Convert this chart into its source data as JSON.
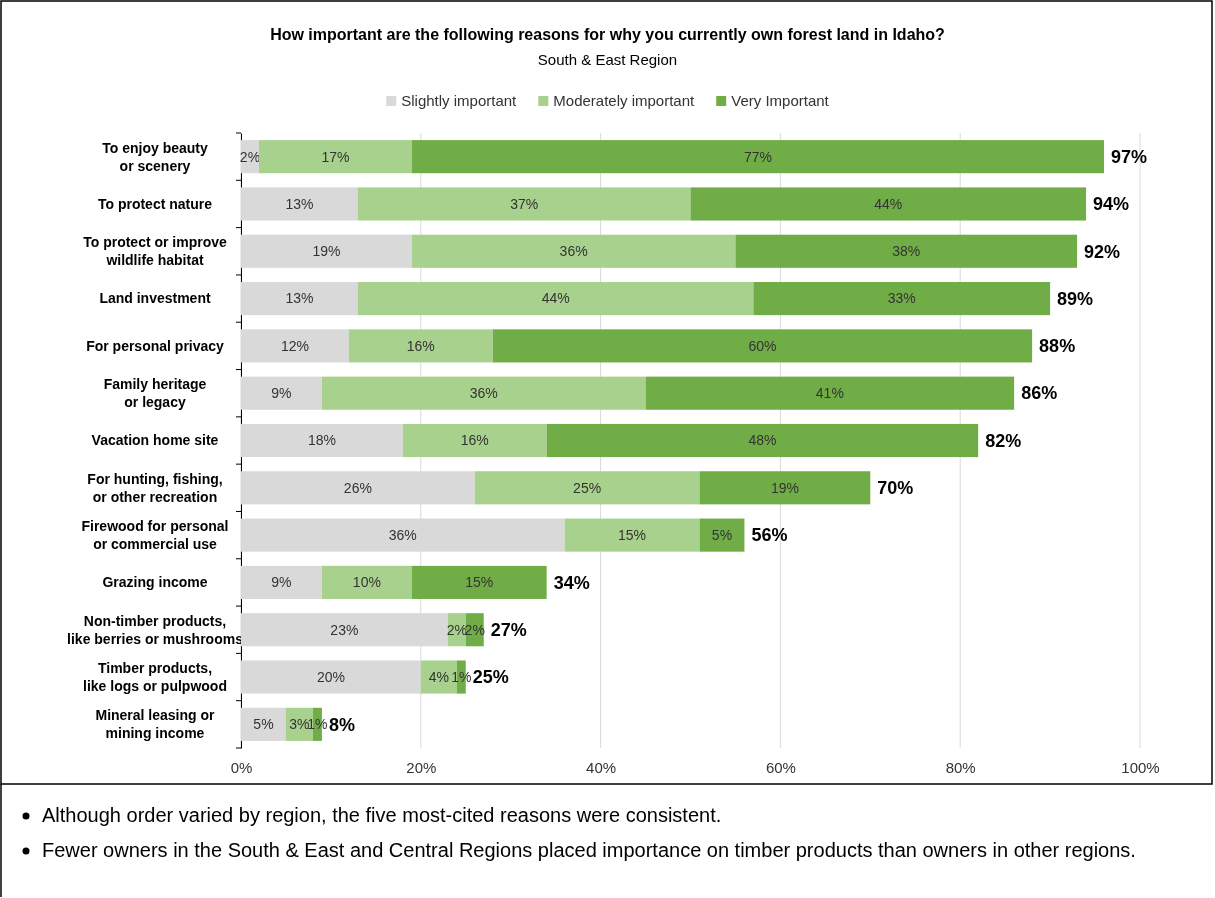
{
  "chart_data": {
    "type": "bar",
    "orientation": "horizontal",
    "stacked": true,
    "title": "How important are the following reasons for why you currently own forest land in Idaho?",
    "subtitle": "South & East Region",
    "categories": [
      "To enjoy beauty\nor scenery",
      "To protect nature",
      "To protect or improve\nwildlife habitat",
      "Land investment",
      "For personal privacy",
      "Family heritage\nor legacy",
      "Vacation home site",
      "For hunting, fishing,\nor other recreation",
      "Firewood for personal\nor commercial use",
      "Grazing income",
      "Non-timber products,\nlike berries or mushrooms",
      "Timber products,\nlike logs or pulpwood",
      "Mineral leasing or\nmining income"
    ],
    "series": [
      {
        "name": "Slightly important",
        "color": "#d9d9d9",
        "values": [
          2,
          13,
          19,
          13,
          12,
          9,
          18,
          26,
          36,
          9,
          23,
          20,
          5
        ],
        "value_labels": [
          "2%",
          "13%",
          "19%",
          "13%",
          "12%",
          "9%",
          "18%",
          "26%",
          "36%",
          "9%",
          "23%",
          "20%",
          "5%"
        ]
      },
      {
        "name": "Moderately important",
        "color": "#a9d18e",
        "values": [
          17,
          37,
          36,
          44,
          16,
          36,
          16,
          25,
          15,
          10,
          2,
          4,
          3
        ],
        "value_labels": [
          "17%",
          "37%",
          "36%",
          "44%",
          "16%",
          "36%",
          "16%",
          "25%",
          "15%",
          "10%",
          "2%",
          "4%",
          "3%"
        ]
      },
      {
        "name": "Very Important",
        "color": "#70ad47",
        "values": [
          77,
          44,
          38,
          33,
          60,
          41,
          48,
          19,
          5,
          15,
          2,
          1,
          1
        ],
        "value_labels": [
          "77%",
          "44%",
          "38%",
          "33%",
          "60%",
          "41%",
          "48%",
          "19%",
          "5%",
          "15%",
          "2%",
          "1%",
          "1%"
        ]
      }
    ],
    "totals": [
      "97%",
      "94%",
      "92%",
      "89%",
      "88%",
      "86%",
      "82%",
      "70%",
      "56%",
      "34%",
      "27%",
      "25%",
      "8%"
    ],
    "xlim": [
      0,
      100
    ],
    "xticks": [
      {
        "value": 0,
        "label": "0%"
      },
      {
        "value": 20,
        "label": "20%"
      },
      {
        "value": 40,
        "label": "40%"
      },
      {
        "value": 60,
        "label": "60%"
      },
      {
        "value": 80,
        "label": "80%"
      },
      {
        "value": 100,
        "label": "100%"
      }
    ],
    "grid": "x",
    "legend": "top",
    "annotations": [
      "Although order varied by region, the five most-cited reasons were consistent.",
      "Fewer owners in the South & East and Central Regions placed importance on timber products than owners in other regions."
    ]
  }
}
